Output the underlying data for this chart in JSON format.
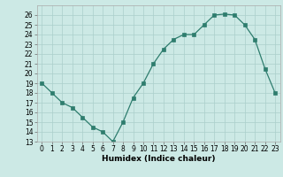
{
  "x": [
    0,
    1,
    2,
    3,
    4,
    5,
    6,
    7,
    8,
    9,
    10,
    11,
    12,
    13,
    14,
    15,
    16,
    17,
    18,
    19,
    20,
    21,
    22,
    23
  ],
  "y": [
    19,
    18,
    17,
    16.5,
    15.5,
    14.5,
    14,
    13,
    15,
    17.5,
    19,
    21,
    22.5,
    23.5,
    24,
    24,
    25,
    26,
    26.1,
    26,
    25,
    23.5,
    20.5,
    18
  ],
  "line_color": "#2e7d6e",
  "marker": "s",
  "marker_size": 2.5,
  "bg_color": "#cce9e5",
  "grid_color": "#aacfcb",
  "xlabel": "Humidex (Indice chaleur)",
  "xlim": [
    -0.5,
    23.5
  ],
  "ylim": [
    13,
    27
  ],
  "yticks": [
    13,
    14,
    15,
    16,
    17,
    18,
    19,
    20,
    21,
    22,
    23,
    24,
    25,
    26
  ],
  "xticks": [
    0,
    1,
    2,
    3,
    4,
    5,
    6,
    7,
    8,
    9,
    10,
    11,
    12,
    13,
    14,
    15,
    16,
    17,
    18,
    19,
    20,
    21,
    22,
    23
  ],
  "label_fontsize": 6.5,
  "tick_fontsize": 5.5
}
